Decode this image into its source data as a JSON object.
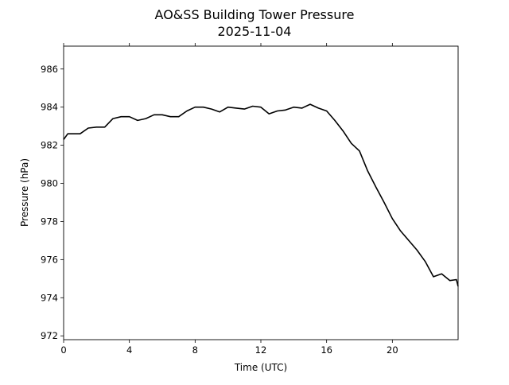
{
  "chart_data": {
    "type": "line",
    "title": "AO&SS Building Tower Pressure",
    "subtitle": "2025-11-04",
    "xlabel": "Time (UTC)",
    "ylabel": "Pressure (hPa)",
    "xlim": [
      0,
      24
    ],
    "ylim": [
      971.8,
      987.2
    ],
    "xticks": [
      0,
      4,
      8,
      12,
      16,
      20
    ],
    "yticks": [
      972,
      974,
      976,
      978,
      980,
      982,
      984,
      986
    ],
    "grid": false,
    "line_color": "#000000",
    "series": [
      {
        "x": [
          0,
          0.25,
          1,
          1.5,
          2,
          2.5,
          3,
          3.5,
          4,
          4.5,
          5,
          5.5,
          6,
          6.5,
          7,
          7.5,
          8,
          8.5,
          9,
          9.5,
          10,
          10.5,
          11,
          11.5,
          12,
          12.5,
          13,
          13.5,
          14,
          14.5,
          15,
          15.5,
          16,
          16.5,
          17,
          17.5,
          18,
          18.5,
          19,
          19.5,
          20,
          20.5,
          21,
          21.5,
          22,
          22.5,
          23,
          23.5,
          23.9,
          24
        ],
        "y": [
          982.3,
          982.6,
          982.6,
          982.9,
          982.95,
          982.95,
          983.4,
          983.5,
          983.5,
          983.3,
          983.4,
          983.6,
          983.6,
          983.5,
          983.5,
          983.8,
          984.0,
          984.0,
          983.9,
          983.75,
          984.0,
          983.95,
          983.9,
          984.05,
          984.0,
          983.65,
          983.8,
          983.85,
          984.0,
          983.95,
          984.15,
          983.95,
          983.8,
          983.3,
          982.75,
          982.1,
          981.7,
          980.65,
          979.8,
          979.0,
          978.15,
          977.5,
          977.0,
          976.5,
          975.9,
          975.1,
          975.25,
          974.9,
          974.95,
          974.6
        ]
      }
    ]
  }
}
